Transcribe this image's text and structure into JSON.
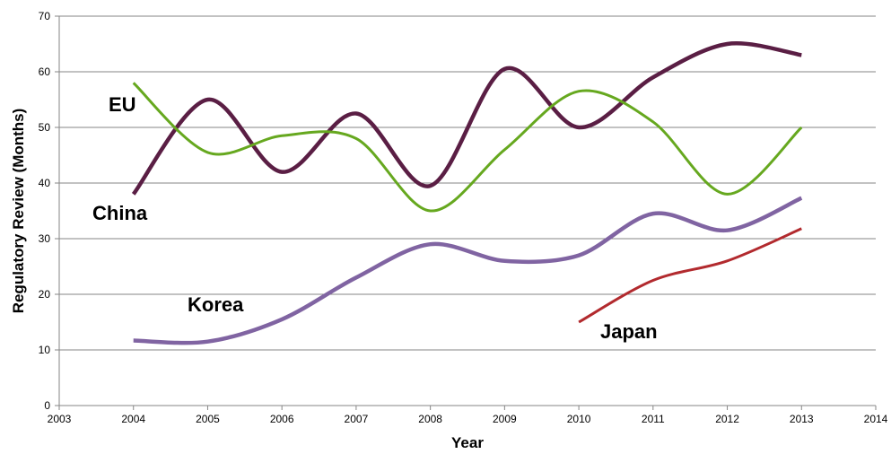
{
  "chart_data": {
    "type": "line",
    "title": "",
    "xlabel": "Year",
    "ylabel": "Regulatory Review (Months)",
    "xlim": [
      2003,
      2014
    ],
    "ylim": [
      0,
      70
    ],
    "x_ticks": [
      "2003",
      "2004",
      "2005",
      "2006",
      "2007",
      "2008",
      "2009",
      "2010",
      "2011",
      "2012",
      "2013",
      "2014"
    ],
    "y_ticks": [
      "0",
      "10",
      "20",
      "30",
      "40",
      "50",
      "60",
      "70"
    ],
    "grid": "horizontal",
    "legend": "none",
    "series": [
      {
        "name": "China",
        "color": "#5a1e44",
        "points": [
          [
            2004,
            38
          ],
          [
            2005,
            55
          ],
          [
            2006,
            42
          ],
          [
            2007,
            52.5
          ],
          [
            2008,
            39.5
          ],
          [
            2009,
            60.5
          ],
          [
            2010,
            50
          ],
          [
            2011,
            59
          ],
          [
            2012,
            65
          ],
          [
            2013,
            63
          ]
        ]
      },
      {
        "name": "EU",
        "color": "#66a81f",
        "points": [
          [
            2004,
            58
          ],
          [
            2005,
            45.5
          ],
          [
            2006,
            48.5
          ],
          [
            2007,
            48
          ],
          [
            2008,
            35
          ],
          [
            2009,
            46
          ],
          [
            2010,
            56.5
          ],
          [
            2011,
            51
          ],
          [
            2012,
            38
          ],
          [
            2013,
            50
          ]
        ]
      },
      {
        "name": "Korea",
        "color": "#8064a2",
        "points": [
          [
            2004,
            11.7
          ],
          [
            2005,
            11.5
          ],
          [
            2006,
            15.5
          ],
          [
            2007,
            23
          ],
          [
            2008,
            29
          ],
          [
            2009,
            26
          ],
          [
            2010,
            27
          ],
          [
            2011,
            34.5
          ],
          [
            2012,
            31.5
          ],
          [
            2013,
            37.3
          ]
        ]
      },
      {
        "name": "Japan",
        "color": "#b22a2e",
        "points": [
          [
            2010,
            15
          ],
          [
            2011,
            22.5
          ],
          [
            2012,
            26
          ],
          [
            2013,
            31.8
          ]
        ]
      }
    ]
  }
}
